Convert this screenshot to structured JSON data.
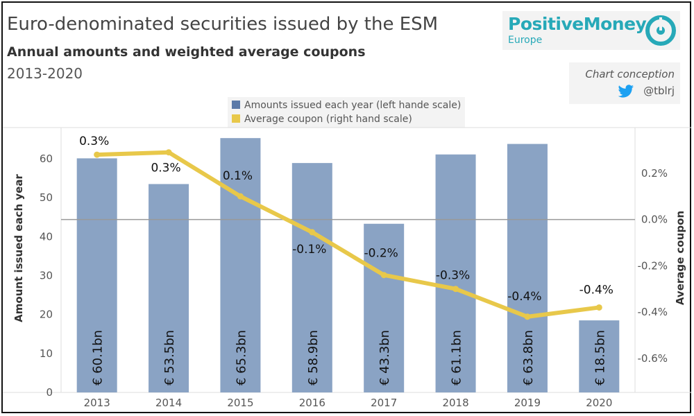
{
  "header": {
    "title": "Euro-denominated securities issued by the ESM",
    "subtitle": "Annual amounts and weighted average coupons",
    "years": "2013-2020"
  },
  "logo": {
    "name": "PositiveMoney",
    "sub": "Europe"
  },
  "credit": {
    "text": "Chart conception",
    "handle": "@tblrj"
  },
  "legend": {
    "bars": "Amounts issued each year (left hande scale)",
    "line": "Average coupon (right hand scale)"
  },
  "colors": {
    "bar": "#8aa3c4",
    "line": "#e8c84a",
    "zero": "#999999"
  },
  "chart_data": {
    "type": "bar+line",
    "categories": [
      "2013",
      "2014",
      "2015",
      "2016",
      "2017",
      "2018",
      "2019",
      "2020"
    ],
    "series": [
      {
        "name": "Amounts issued each year",
        "axis": "left",
        "values": [
          60.1,
          53.5,
          65.3,
          58.9,
          43.3,
          61.1,
          63.8,
          18.5
        ],
        "labels": [
          "€ 60.1bn",
          "€ 53.5bn",
          "€ 65.3bn",
          "€ 58.9bn",
          "€ 43.3bn",
          "€ 61.1bn",
          "€ 63.8bn",
          "€ 18.5bn"
        ]
      },
      {
        "name": "Average coupon",
        "axis": "right",
        "values": [
          0.28,
          0.29,
          0.1,
          -0.055,
          -0.24,
          -0.3,
          -0.42,
          -0.38
        ],
        "labels": [
          "0.3%",
          "0.3%",
          "0.1%",
          "-0.1%",
          "-0.2%",
          "-0.3%",
          "-0.4%",
          "-0.4%"
        ]
      }
    ],
    "ylabel_left": "Amount issued each year",
    "ylabel_right": "Average coupon",
    "left_ticks": [
      "0",
      "10",
      "20",
      "30",
      "40",
      "50",
      "60"
    ],
    "right_ticks": [
      "0.2%",
      "0.0%",
      "-0.2%",
      "-0.4%",
      "-0.6%"
    ],
    "ylim_left": [
      0,
      68
    ],
    "ylim_right": [
      -0.747,
      0.397
    ]
  }
}
